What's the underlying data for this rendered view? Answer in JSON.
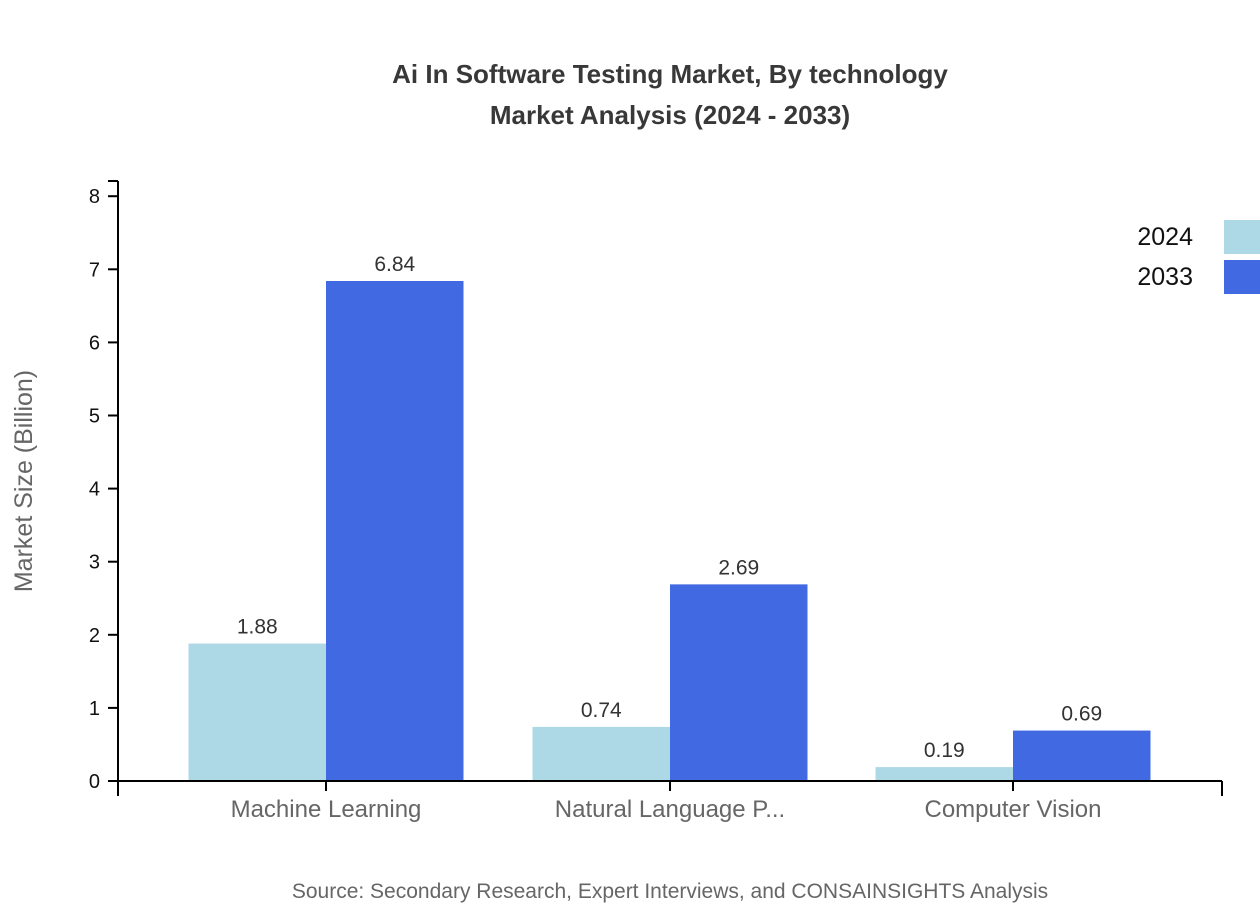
{
  "title": {
    "line1": "Ai In Software Testing Market, By technology",
    "line2": "Market Analysis (2024 - 2033)"
  },
  "source": "Source: Secondary Research, Expert Interviews, and CONSAINSIGHTS Analysis",
  "legend": {
    "items": [
      {
        "label": "2024",
        "color": "#ADD8E6"
      },
      {
        "label": "2033",
        "color": "#4169E1"
      }
    ]
  },
  "colors": {
    "series_2024": "#ADD8E6",
    "series_2033": "#4169E1",
    "axis": "#000000",
    "tick_label": "#111111",
    "value_label": "#333333",
    "category_label": "#666666",
    "axis_title": "#666666",
    "title_text": "#383838",
    "source_text": "#666666"
  },
  "chart_data": {
    "type": "bar",
    "title": "Ai In Software Testing Market, By technology Market Analysis (2024 - 2033)",
    "categories": [
      "Machine Learning",
      "Natural Language P...",
      "Computer Vision"
    ],
    "series": [
      {
        "name": "2024",
        "color": "#ADD8E6",
        "values": [
          1.88,
          0.74,
          0.19
        ]
      },
      {
        "name": "2033",
        "color": "#4169E1",
        "values": [
          6.84,
          2.69,
          0.69
        ]
      }
    ],
    "value_labels": {
      "2024": [
        "1.88",
        "0.74",
        "0.19"
      ],
      "2033": [
        "6.84",
        "2.69",
        "0.69"
      ]
    },
    "xlabel": "",
    "ylabel": "Market Size (Billion)",
    "ylim": [
      0,
      8.208
    ],
    "yticks": [
      0,
      1,
      2,
      3,
      4,
      5,
      6,
      7,
      8
    ],
    "grid": false,
    "legend_position": "top-right"
  }
}
